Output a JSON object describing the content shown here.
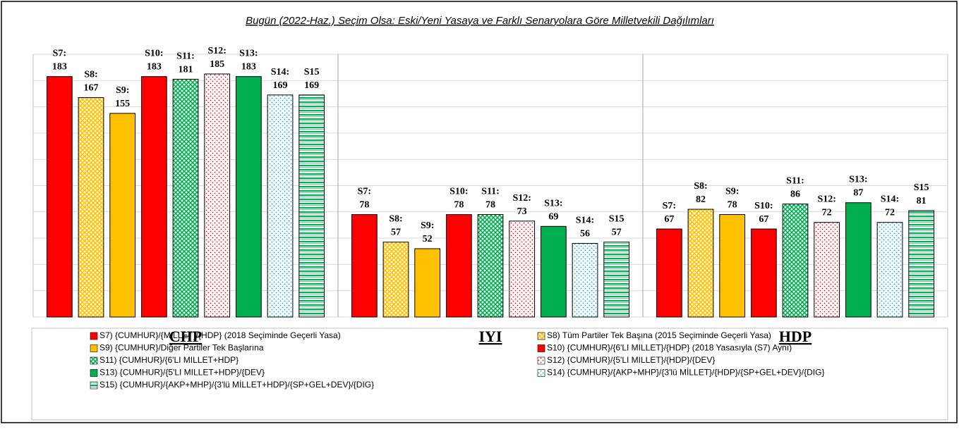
{
  "chart_data": {
    "type": "bar",
    "title": "Bugün (2022-Haz.) Seçim Olsa: Eski/Yeni Yasaya ve Farklı Senaryolara Göre Milletvekili Dağılımları",
    "categories": [
      "CHP",
      "IYI",
      "HDP"
    ],
    "ylim": [
      0,
      200
    ],
    "yticks": [
      0,
      20,
      40,
      60,
      80,
      100,
      120,
      140,
      160,
      180,
      200
    ],
    "grid": true,
    "series": [
      {
        "name": "S7) {CUMHUR}/{MILLET}/{HDP} (2018 Seçiminde Geçerli Yasa)",
        "color": "#ff0000",
        "pattern": "solid",
        "values": [
          183,
          78,
          67
        ],
        "value_labels": [
          "S7:\n183",
          "S7:\n78",
          "S7:\n67"
        ]
      },
      {
        "name": "S8) Tüm Partiler Tek Başına (2015 Seçiminde Geçerli Yasa)",
        "color": "#ffc000",
        "pattern": "cross",
        "values": [
          167,
          57,
          82
        ],
        "value_labels": [
          "S8:\n167",
          "S8:\n57",
          "S8:\n82"
        ]
      },
      {
        "name": "S9) {CUMHUR}/Diğer Partiler Tek Başlarına",
        "color": "#ffc000",
        "pattern": "solid",
        "values": [
          155,
          52,
          78
        ],
        "value_labels": [
          "S9:\n155",
          "S9:\n52",
          "S9:\n78"
        ]
      },
      {
        "name": "S10) {CUMHUR}/{6'LI MILLET}/{HDP} (2018 Yasasıyla (S7) Aynı)",
        "color": "#ff0000",
        "pattern": "solid",
        "values": [
          183,
          78,
          67
        ],
        "value_labels": [
          "S10:\n183",
          "S10:\n78",
          "S10:\n67"
        ]
      },
      {
        "name": "S11) {CUMHUR}/{6'LI MILLET+HDP}",
        "color": "#00b050",
        "pattern": "cross",
        "values": [
          181,
          78,
          86
        ],
        "value_labels": [
          "S11:\n181",
          "S11:\n78",
          "S11:\n86"
        ]
      },
      {
        "name": "S12) {CUMHUR}/{5'LI MILLET}/{HDP}/{DEV}",
        "color": "#ff0000",
        "pattern": "dots",
        "values": [
          185,
          73,
          72
        ],
        "value_labels": [
          "S12:\n185",
          "S12:\n73",
          "S12:\n72"
        ]
      },
      {
        "name": "S13) {CUMHUR}/{5'LI MILLET+HDP}/{DEV}",
        "color": "#00b050",
        "pattern": "solid",
        "values": [
          183,
          69,
          87
        ],
        "value_labels": [
          "S13:\n183",
          "S13:\n69",
          "S13:\n87"
        ]
      },
      {
        "name": "S14) {CUMHUR}/{AKP+MHP}/{3'lü MİLLET}/{HDP}/{SP+GEL+DEV}/{DIG}",
        "color": "#00b0f0",
        "pattern": "dots",
        "values": [
          169,
          56,
          72
        ],
        "value_labels": [
          "S14:\n169",
          "S14:\n56",
          "S14:\n72"
        ]
      },
      {
        "name": "S15) {CUMHUR}/{AKP+MHP}/{3'lü MİLLET+HDP}/{SP+GEL+DEV}/{DIG}",
        "color": "#00b050",
        "pattern": "lines",
        "values": [
          169,
          57,
          81
        ],
        "value_labels": [
          "S15\n169",
          "S15\n57",
          "S15\n81"
        ]
      }
    ]
  }
}
